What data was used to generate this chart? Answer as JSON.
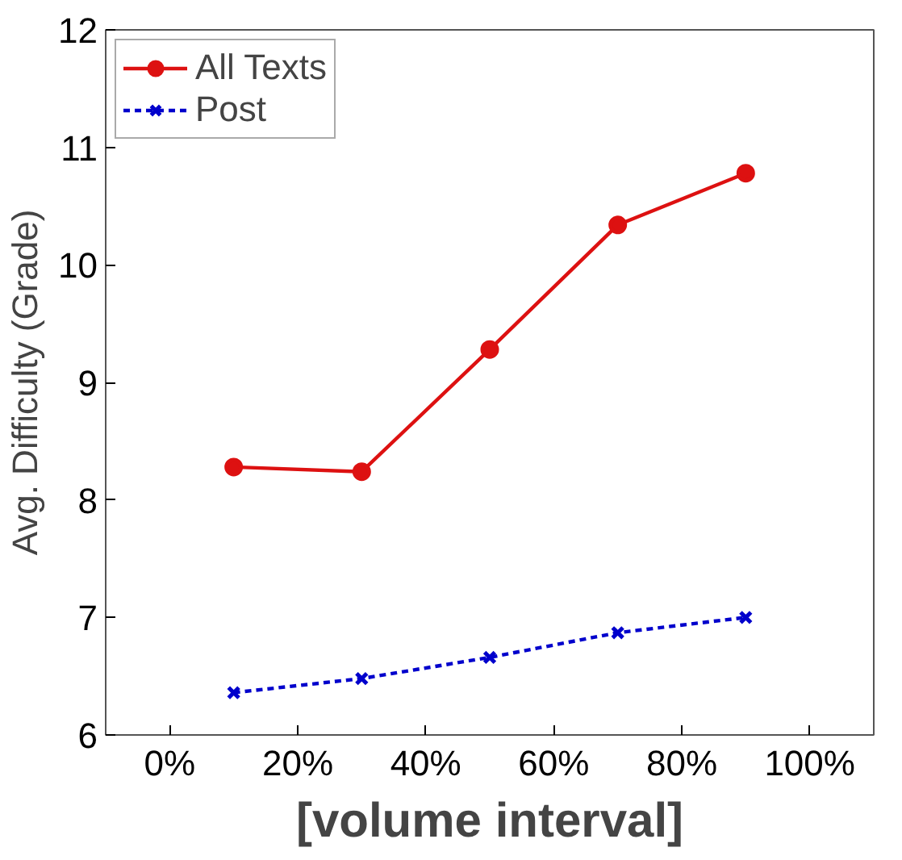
{
  "chart_data": {
    "type": "line",
    "xlabel": "[volume interval]",
    "ylabel": "Avg. Difficulty (Grade)",
    "x": [
      0.1,
      0.3,
      0.5,
      0.7,
      0.9
    ],
    "series": [
      {
        "name": "All Texts",
        "color": "#dd1111",
        "marker": "circle",
        "line_style": "solid",
        "values": [
          8.28,
          8.24,
          9.28,
          10.34,
          10.78
        ]
      },
      {
        "name": "Post",
        "color": "#0000cc",
        "marker": "cross",
        "line_style": "dashed",
        "values": [
          6.36,
          6.48,
          6.66,
          6.87,
          7.0
        ]
      }
    ],
    "xlim": [
      -0.1,
      1.1
    ],
    "ylim": [
      6,
      12
    ],
    "xticks": [
      {
        "value": 0,
        "label": "0%"
      },
      {
        "value": 0.2,
        "label": "20%"
      },
      {
        "value": 0.4,
        "label": "40%"
      },
      {
        "value": 0.6,
        "label": "60%"
      },
      {
        "value": 0.8,
        "label": "80%"
      },
      {
        "value": 1.0,
        "label": "100%"
      }
    ],
    "yticks": [
      6,
      7,
      8,
      9,
      10,
      11,
      12
    ],
    "grid": false,
    "legend": "top left"
  }
}
